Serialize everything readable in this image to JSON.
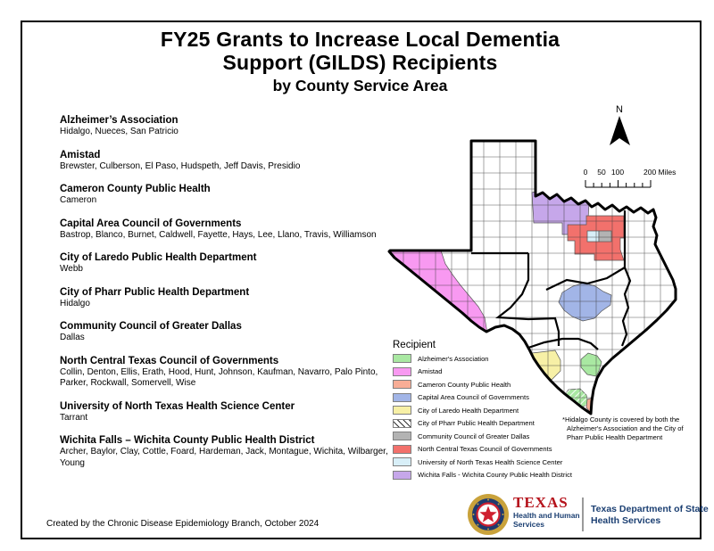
{
  "title": {
    "line1": "FY25 Grants to Increase Local Dementia",
    "line2": "Support (GILDS) Recipients",
    "line3": "by County Service Area"
  },
  "recipients": [
    {
      "name": "Alzheimer’s Association",
      "counties": "Hidalgo, Nueces, San Patricio"
    },
    {
      "name": "Amistad",
      "counties": "Brewster, Culberson, El Paso, Hudspeth, Jeff Davis, Presidio"
    },
    {
      "name": "Cameron County Public Health",
      "counties": "Cameron"
    },
    {
      "name": "Capital Area Council of Governments",
      "counties": "Bastrop, Blanco, Burnet, Caldwell, Fayette, Hays, Lee, Llano, Travis, Williamson"
    },
    {
      "name": "City of Laredo Public Health Department",
      "counties": "Webb"
    },
    {
      "name": "City of Pharr Public Health Department",
      "counties": "Hidalgo"
    },
    {
      "name": "Community Council of Greater Dallas",
      "counties": "Dallas"
    },
    {
      "name": "North Central Texas Council of Governments",
      "counties": "Collin, Denton, Ellis, Erath, Hood, Hunt, Johnson, Kaufman, Navarro, Palo Pinto, Parker, Rockwall, Somervell, Wise"
    },
    {
      "name": "University of North Texas Health Science Center",
      "counties": "Tarrant"
    },
    {
      "name": "Wichita Falls – Wichita County Public Health District",
      "counties": "Archer, Baylor, Clay, Cottle, Foard, Hardeman, Jack, Montague, Wichita, Wilbarger, Young"
    }
  ],
  "map": {
    "north_label": "N",
    "scale": {
      "tick0": "0",
      "tick50": "50",
      "tick100": "100",
      "tick200": "200 Miles"
    },
    "legend": {
      "title": "Recipient",
      "items": [
        {
          "label": "Alzheimer's Association"
        },
        {
          "label": "Amistad"
        },
        {
          "label": "Cameron County Public Health"
        },
        {
          "label": "Capital Area Council of Governments"
        },
        {
          "label": "City of Laredo Health Department"
        },
        {
          "label": "City of Pharr Public Health Department"
        },
        {
          "label": "Community Council of Greater Dallas"
        },
        {
          "label": "North Central Texas Council of Governments"
        },
        {
          "label": "University of North Texas Health Science Center"
        },
        {
          "label": "Wichita Falls - Wichita County Public Health District"
        }
      ]
    },
    "note": [
      "*Hidalgo County is covered by both the",
      "Alzheimer's Association and the City of",
      "Pharr Public Health Department"
    ]
  },
  "footer": {
    "credit": "Created by the Chronic Disease Epidemiology Branch, October 2024",
    "hhs": {
      "texas": "TEXAS",
      "sub1": "Health and Human",
      "sub2": "Services"
    },
    "dshs": {
      "line1": "Texas Department of State",
      "line2": "Health Services"
    }
  },
  "colors": {
    "alzheimers": "#a9e8a2",
    "amistad": "#f899f1",
    "cameron": "#f8ad96",
    "capcog": "#a2b5e7",
    "laredo": "#f7f0a6",
    "dallas": "#b3b3b3",
    "nctcog": "#f2716c",
    "unthsc": "#d8eff8",
    "wichita": "#c6a7ea",
    "texas_red": "#b5121b",
    "navy": "#1b3f72"
  }
}
